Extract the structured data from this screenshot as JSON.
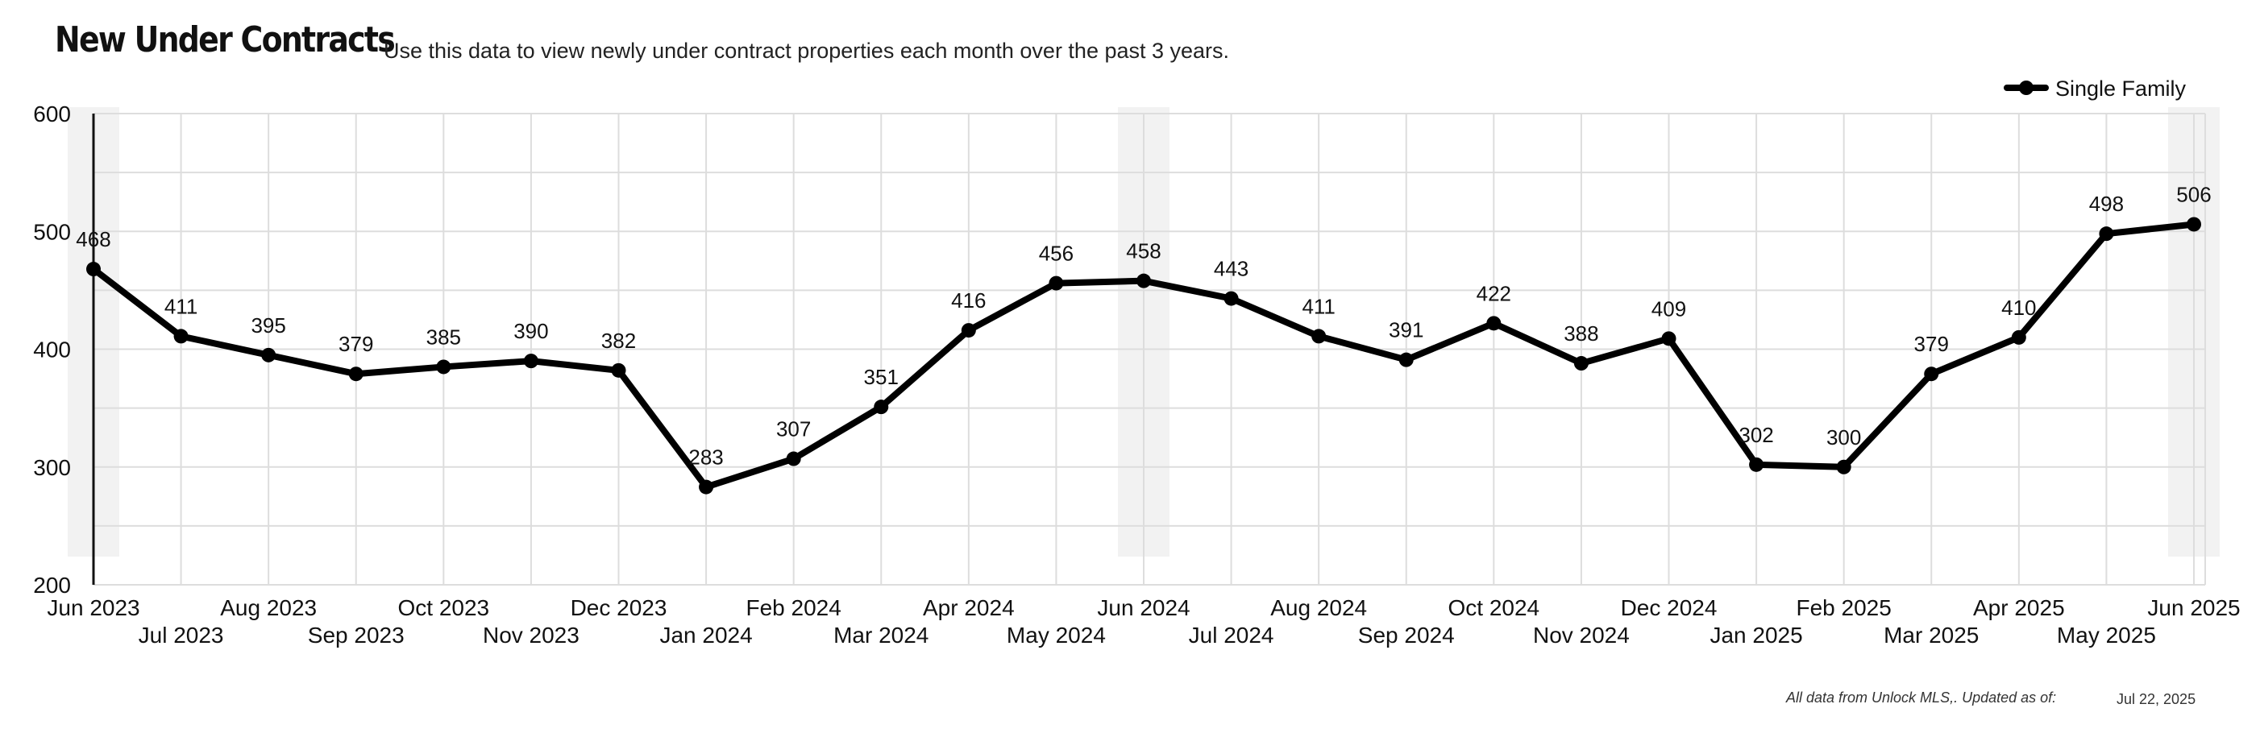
{
  "header": {
    "title": "New Under Contracts",
    "subtitle": "Use this data to view newly under contract properties each month over the past 3 years."
  },
  "footer": {
    "source": "All data from Unlock MLS,. Updated as of:",
    "updated": "Jul 22, 2025"
  },
  "colors": {
    "line": "#000000",
    "grid": "#dddddd",
    "highlight": "#f2f2f2"
  },
  "chart_data": {
    "type": "line",
    "title": "New Under Contracts",
    "subtitle": "Use this data to view newly under contract properties each month over the past 3 years.",
    "xlabel": "",
    "ylabel": "",
    "ylim": [
      200,
      600
    ],
    "yticks": [
      200,
      300,
      400,
      500,
      600
    ],
    "grid": true,
    "legend": "top-right",
    "highlighted_months": [
      "Jun 2023",
      "Jun 2024",
      "Jun 2025"
    ],
    "categories": [
      "Jun 2023",
      "Jul 2023",
      "Aug 2023",
      "Sep 2023",
      "Oct 2023",
      "Nov 2023",
      "Dec 2023",
      "Jan 2024",
      "Feb 2024",
      "Mar 2024",
      "Apr 2024",
      "May 2024",
      "Jun 2024",
      "Jul 2024",
      "Aug 2024",
      "Sep 2024",
      "Oct 2024",
      "Nov 2024",
      "Dec 2024",
      "Jan 2025",
      "Feb 2025",
      "Mar 2025",
      "Apr 2025",
      "May 2025",
      "Jun 2025"
    ],
    "series": [
      {
        "name": "Single Family",
        "values": [
          468,
          411,
          395,
          379,
          385,
          390,
          382,
          283,
          307,
          351,
          416,
          456,
          458,
          443,
          411,
          391,
          422,
          388,
          409,
          302,
          300,
          379,
          410,
          498,
          506
        ]
      }
    ]
  }
}
